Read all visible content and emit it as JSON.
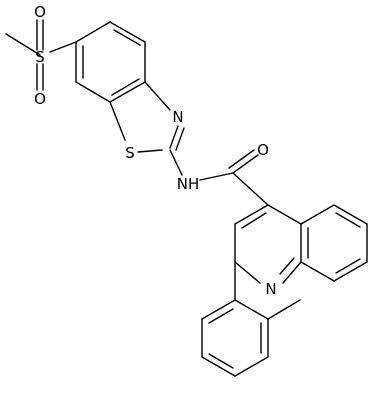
{
  "atoms": [
    {
      "label": "O"
    },
    {
      "label": "S"
    },
    {
      "label": "O"
    },
    {
      "label": "S"
    },
    {
      "label": "N"
    },
    {
      "label": "NH"
    },
    {
      "label": "O"
    },
    {
      "label": "N"
    }
  ]
}
